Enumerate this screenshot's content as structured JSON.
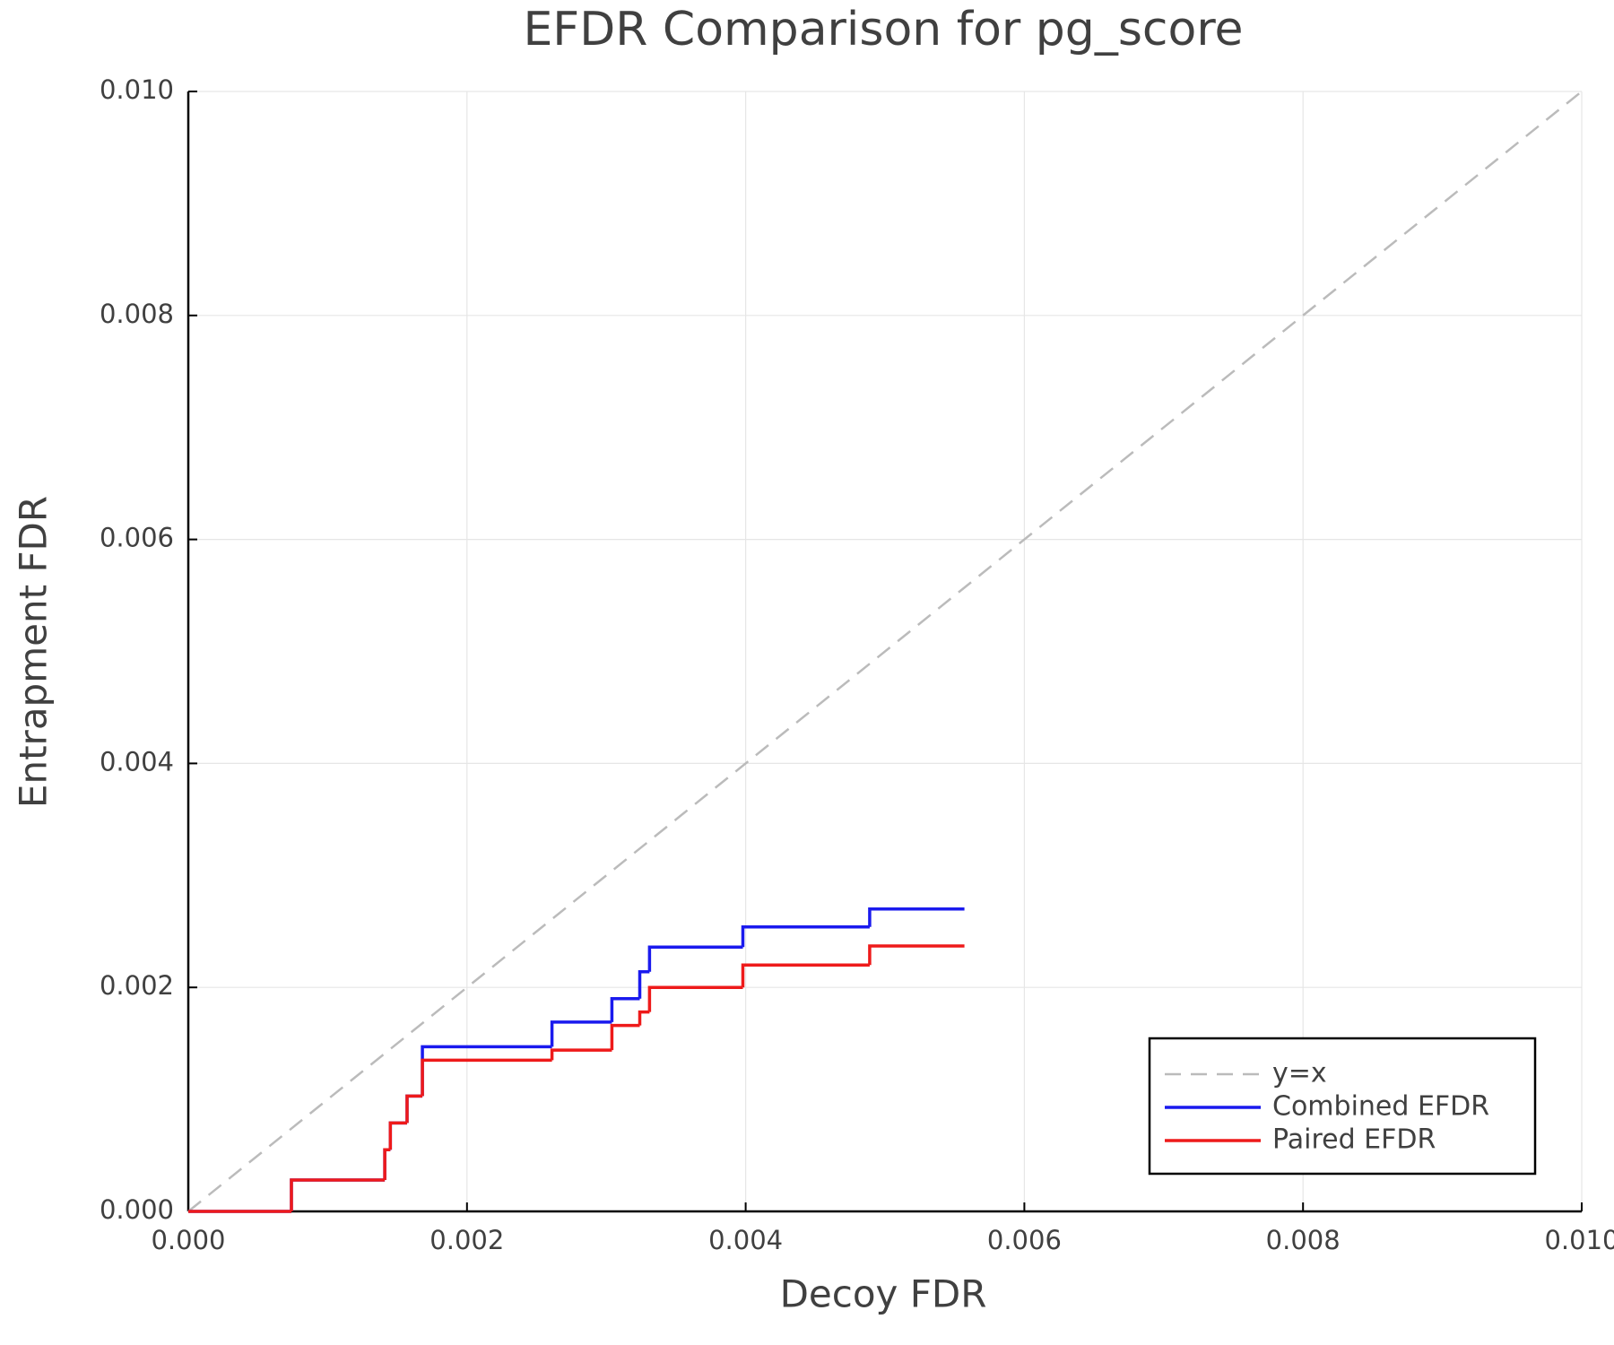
{
  "chart_data": {
    "type": "step",
    "step": "post",
    "title": "EFDR Comparison for pg_score",
    "x_label": "Decoy FDR",
    "y_label": "Entrapment FDR",
    "xlim": [
      0,
      0.01
    ],
    "ylim": [
      0,
      0.01
    ],
    "xticks": [
      {
        "value": 0,
        "label": "0.000"
      },
      {
        "value": 0.002,
        "label": "0.002"
      },
      {
        "value": 0.004,
        "label": "0.004"
      },
      {
        "value": 0.006,
        "label": "0.006"
      },
      {
        "value": 0.008,
        "label": "0.008"
      },
      {
        "value": 0.01,
        "label": "0.010"
      }
    ],
    "yticks": [
      {
        "value": 0,
        "label": "0.000"
      },
      {
        "value": 0.002,
        "label": "0.002"
      },
      {
        "value": 0.004,
        "label": "0.004"
      },
      {
        "value": 0.006,
        "label": "0.006"
      },
      {
        "value": 0.008,
        "label": "0.008"
      },
      {
        "value": 0.01,
        "label": "0.010"
      }
    ],
    "grid": true,
    "legend": "lower right",
    "series": [
      {
        "name": "y=x",
        "color": "#bbbbbb",
        "dashed": true,
        "step": false,
        "x": [
          0,
          0.01
        ],
        "values": [
          0,
          0.01
        ]
      },
      {
        "name": "Combined EFDR",
        "color": "#1a1aee",
        "dashed": false,
        "step": true,
        "x": [
          0,
          0.00074,
          0.00141,
          0.00145,
          0.00157,
          0.00168,
          0.00261,
          0.00304,
          0.00324,
          0.00331,
          0.00398,
          0.00489,
          0.00557
        ],
        "values": [
          0,
          0.00028,
          0.00055,
          0.00079,
          0.00103,
          0.00147,
          0.00169,
          0.0019,
          0.00214,
          0.00236,
          0.00254,
          0.0027,
          0.0027
        ]
      },
      {
        "name": "Paired EFDR",
        "color": "#ee1a1a",
        "dashed": false,
        "step": true,
        "x": [
          0,
          0.00074,
          0.00141,
          0.00145,
          0.00157,
          0.00168,
          0.00261,
          0.00304,
          0.00324,
          0.00331,
          0.00398,
          0.00489,
          0.00557
        ],
        "values": [
          0,
          0.00028,
          0.00055,
          0.00079,
          0.00103,
          0.00135,
          0.00144,
          0.00166,
          0.00178,
          0.002,
          0.0022,
          0.00237,
          0.00237
        ]
      }
    ]
  }
}
